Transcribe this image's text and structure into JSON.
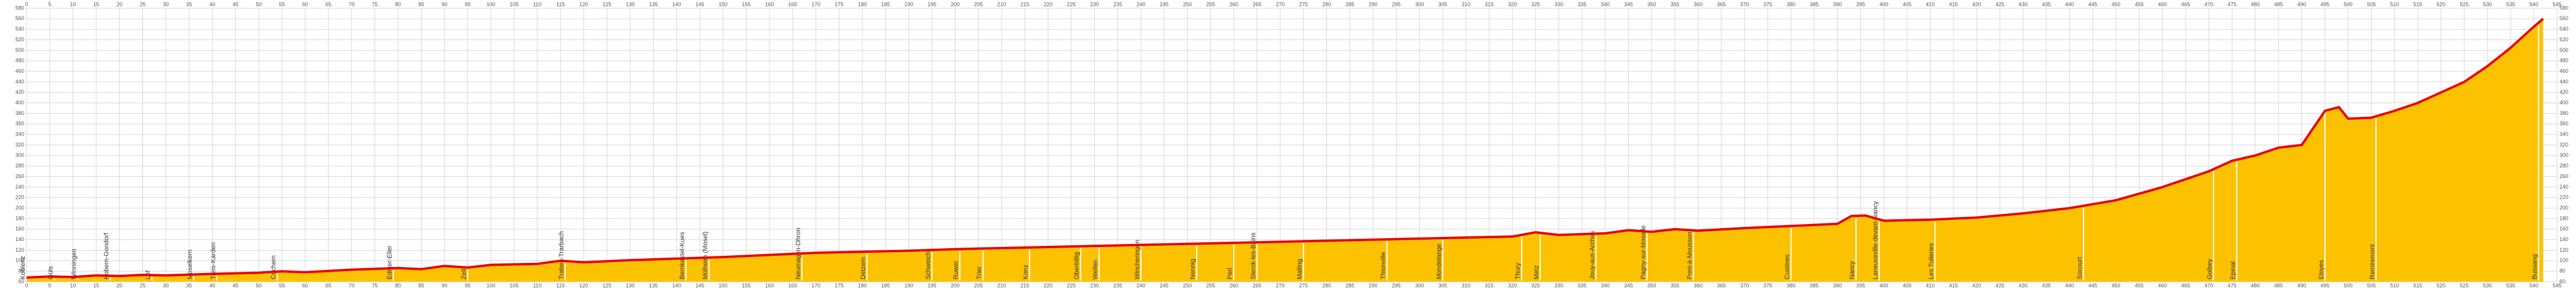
{
  "chart_data": {
    "type": "area",
    "fill_color": "#fcc200",
    "line_color": "#e8000b",
    "grid": true,
    "xlim": [
      0,
      545
    ],
    "ylim": [
      60,
      580
    ],
    "xticks": [
      0,
      5,
      10,
      15,
      20,
      25,
      30,
      35,
      40,
      45,
      50,
      55,
      60,
      65,
      70,
      75,
      80,
      85,
      90,
      95,
      100,
      105,
      110,
      115,
      120,
      125,
      130,
      135,
      140,
      145,
      150,
      155,
      160,
      165,
      170,
      175,
      180,
      185,
      190,
      195,
      200,
      205,
      210,
      215,
      220,
      225,
      230,
      235,
      240,
      245,
      250,
      255,
      260,
      265,
      270,
      275,
      280,
      285,
      290,
      295,
      300,
      305,
      310,
      315,
      320,
      325,
      330,
      335,
      340,
      345,
      350,
      355,
      360,
      365,
      370,
      375,
      380,
      385,
      390,
      395,
      400,
      405,
      410,
      415,
      420,
      425,
      430,
      435,
      440,
      445,
      450,
      455,
      460,
      465,
      470,
      475,
      480,
      485,
      490,
      495,
      500,
      505,
      510,
      515,
      520,
      525,
      530,
      535,
      540,
      545
    ],
    "yticks": [
      60,
      80,
      100,
      120,
      140,
      160,
      180,
      200,
      220,
      240,
      260,
      280,
      300,
      320,
      340,
      360,
      380,
      400,
      420,
      440,
      460,
      480,
      500,
      520,
      540,
      560,
      580
    ],
    "x": [
      0,
      5,
      10,
      15,
      20,
      25,
      30,
      40,
      50,
      55,
      60,
      70,
      80,
      85,
      90,
      95,
      100,
      110,
      115,
      120,
      130,
      140,
      150,
      160,
      170,
      180,
      190,
      200,
      210,
      220,
      230,
      240,
      250,
      260,
      270,
      280,
      290,
      300,
      310,
      320,
      325,
      330,
      340,
      345,
      350,
      355,
      360,
      370,
      380,
      390,
      393,
      396,
      400,
      410,
      420,
      430,
      440,
      450,
      460,
      470,
      475,
      480,
      485,
      490,
      495,
      498,
      500,
      505,
      510,
      515,
      520,
      525,
      530,
      535,
      540,
      542
    ],
    "values": [
      68,
      70,
      69,
      72,
      71,
      73,
      72,
      75,
      77,
      80,
      78,
      83,
      86,
      84,
      90,
      87,
      92,
      94,
      100,
      97,
      101,
      104,
      107,
      111,
      115,
      117,
      119,
      122,
      124,
      126,
      128,
      130,
      132,
      134,
      136,
      138,
      140,
      142,
      144,
      146,
      154,
      149,
      152,
      158,
      155,
      160,
      157,
      162,
      166,
      170,
      185,
      186,
      176,
      178,
      182,
      190,
      200,
      215,
      240,
      270,
      290,
      300,
      315,
      320,
      385,
      392,
      370,
      372,
      385,
      400,
      420,
      440,
      470,
      505,
      545,
      560
    ],
    "places": [
      {
        "name": "Koblenz",
        "km": 0
      },
      {
        "name": "Güls",
        "km": 6
      },
      {
        "name": "Winningen",
        "km": 11
      },
      {
        "name": "Kobern-Gondorf",
        "km": 18
      },
      {
        "name": "Löf",
        "km": 27
      },
      {
        "name": "Moselkern",
        "km": 36
      },
      {
        "name": "Treis-Karden",
        "km": 41
      },
      {
        "name": "Cochem",
        "km": 54
      },
      {
        "name": "Ediger-Eller",
        "km": 79
      },
      {
        "name": "Zell",
        "km": 95
      },
      {
        "name": "Traben-Trarbach",
        "km": 116
      },
      {
        "name": "Bernkastel-Kues",
        "km": 142
      },
      {
        "name": "Mülheim (Mosel)",
        "km": 147
      },
      {
        "name": "Neumagen-Dhron",
        "km": 167
      },
      {
        "name": "Detzem",
        "km": 181
      },
      {
        "name": "Schweich",
        "km": 195
      },
      {
        "name": "Ruwer",
        "km": 201
      },
      {
        "name": "Trier",
        "km": 206
      },
      {
        "name": "Konz",
        "km": 216
      },
      {
        "name": "Oberbillig",
        "km": 227
      },
      {
        "name": "Wellen",
        "km": 231
      },
      {
        "name": "Wincheringen",
        "km": 240
      },
      {
        "name": "Nennig",
        "km": 252
      },
      {
        "name": "Perl",
        "km": 260
      },
      {
        "name": "Sierck-les-Bains",
        "km": 265
      },
      {
        "name": "Malling",
        "km": 275
      },
      {
        "name": "Thionville",
        "km": 293
      },
      {
        "name": "Mondelange",
        "km": 305
      },
      {
        "name": "Thury",
        "km": 322
      },
      {
        "name": "Metz",
        "km": 326
      },
      {
        "name": "Jouy-aux-Arches",
        "km": 338
      },
      {
        "name": "Pagny-sur-Moselle",
        "km": 349
      },
      {
        "name": "Pont-à-Mousson",
        "km": 359
      },
      {
        "name": "Custines",
        "km": 380
      },
      {
        "name": "Nancy",
        "km": 394
      },
      {
        "name": "Laneuveville-devant-Nancy",
        "km": 399
      },
      {
        "name": "Les Tuileries",
        "km": 411
      },
      {
        "name": "Socourt",
        "km": 443
      },
      {
        "name": "Golbey",
        "km": 471
      },
      {
        "name": "Epinal",
        "km": 476
      },
      {
        "name": "Eloyes",
        "km": 495
      },
      {
        "name": "Remiremont",
        "km": 506
      },
      {
        "name": "Bussang",
        "km": 541
      }
    ]
  }
}
